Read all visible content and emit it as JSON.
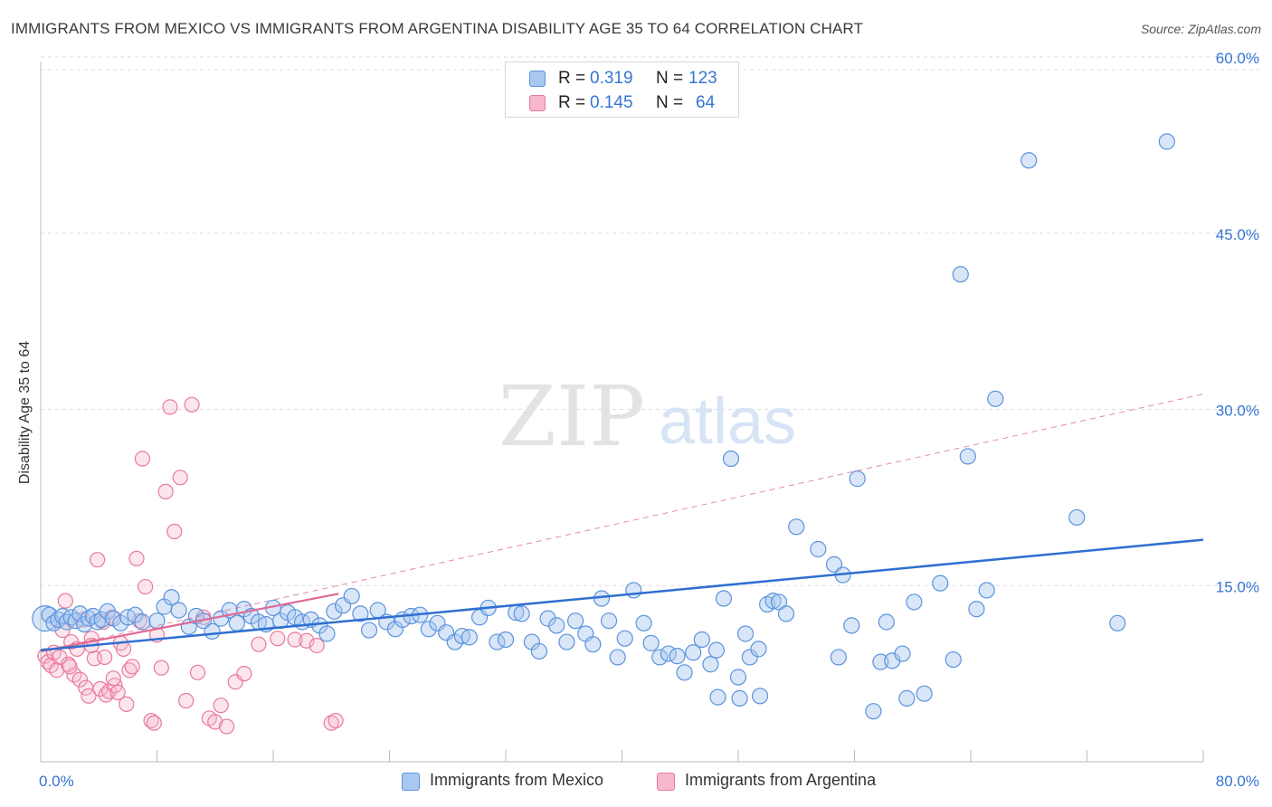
{
  "header": {
    "title": "IMMIGRANTS FROM MEXICO VS IMMIGRANTS FROM ARGENTINA DISABILITY AGE 35 TO 64 CORRELATION CHART",
    "source": "Source: ZipAtlas.com"
  },
  "legend": {
    "mexico": {
      "r_label": "R =",
      "r_value": "0.319",
      "n_label": "N =",
      "n_value": "123"
    },
    "argentina": {
      "r_label": "R =",
      "r_value": "0.145",
      "n_label": "N =",
      "n_value": "64"
    }
  },
  "watermark": {
    "zip": "ZIP",
    "atlas": "atlas"
  },
  "colors": {
    "mexico_fill": "#a9c8f0",
    "mexico_stroke": "#5b93dd",
    "mexico_line": "#2f6fd0",
    "argentina_fill": "#f7b8cb",
    "argentina_stroke": "#e8799c",
    "argentina_line": "#e06a93",
    "value_text": "#3575d4",
    "grid": "#dddddd"
  },
  "chart_data": {
    "type": "scatter",
    "title": "IMMIGRANTS FROM MEXICO VS IMMIGRANTS FROM ARGENTINA DISABILITY AGE 35 TO 64 CORRELATION CHART",
    "xlabel": "",
    "ylabel": "Disability Age 35 to 64",
    "xlim": [
      0,
      80
    ],
    "ylim": [
      0,
      60
    ],
    "x_tick_labels": [
      "0.0%",
      "80.0%"
    ],
    "y_ticks": [
      15,
      30,
      45,
      60
    ],
    "y_tick_labels": [
      "15.0%",
      "30.0%",
      "45.0%",
      "60.0%"
    ],
    "grid": true,
    "legend_position": "top-center",
    "series": [
      {
        "name": "Immigrants from Mexico",
        "r": 0.319,
        "n": 123,
        "trend": {
          "x": [
            0,
            80
          ],
          "y": [
            9.5,
            18.9
          ]
        },
        "points": [
          [
            0.3,
            12.2
          ],
          [
            0.6,
            12.5
          ],
          [
            0.9,
            11.8
          ],
          [
            1.2,
            12.1
          ],
          [
            1.5,
            12.4
          ],
          [
            1.8,
            11.9
          ],
          [
            2.1,
            12.3
          ],
          [
            2.4,
            12.0
          ],
          [
            2.7,
            12.6
          ],
          [
            3.0,
            11.7
          ],
          [
            3.3,
            12.2
          ],
          [
            3.6,
            12.4
          ],
          [
            3.9,
            11.9
          ],
          [
            4.2,
            12.1
          ],
          [
            4.6,
            12.8
          ],
          [
            5.0,
            12.2
          ],
          [
            5.5,
            11.8
          ],
          [
            6.0,
            12.3
          ],
          [
            6.5,
            12.5
          ],
          [
            7.0,
            11.9
          ],
          [
            8.0,
            12.0
          ],
          [
            8.5,
            13.2
          ],
          [
            9.0,
            14.0
          ],
          [
            9.5,
            12.9
          ],
          [
            10.2,
            11.5
          ],
          [
            10.7,
            12.4
          ],
          [
            11.2,
            12.0
          ],
          [
            11.8,
            11.1
          ],
          [
            12.4,
            12.2
          ],
          [
            13.0,
            12.9
          ],
          [
            13.5,
            11.8
          ],
          [
            14.0,
            13.0
          ],
          [
            14.5,
            12.4
          ],
          [
            15.0,
            11.9
          ],
          [
            15.5,
            11.7
          ],
          [
            16.0,
            13.1
          ],
          [
            16.5,
            12.0
          ],
          [
            17.0,
            12.7
          ],
          [
            17.5,
            12.3
          ],
          [
            18.0,
            11.9
          ],
          [
            18.6,
            12.1
          ],
          [
            19.2,
            11.6
          ],
          [
            19.7,
            10.9
          ],
          [
            20.2,
            12.8
          ],
          [
            20.8,
            13.3
          ],
          [
            21.4,
            14.1
          ],
          [
            22.0,
            12.6
          ],
          [
            22.6,
            11.2
          ],
          [
            23.2,
            12.9
          ],
          [
            23.8,
            11.9
          ],
          [
            24.4,
            11.3
          ],
          [
            24.9,
            12.1
          ],
          [
            25.5,
            12.4
          ],
          [
            26.1,
            12.5
          ],
          [
            26.7,
            11.3
          ],
          [
            27.3,
            11.8
          ],
          [
            27.9,
            11.0
          ],
          [
            28.5,
            10.2
          ],
          [
            29.0,
            10.7
          ],
          [
            29.5,
            10.6
          ],
          [
            30.2,
            12.3
          ],
          [
            30.8,
            13.1
          ],
          [
            31.4,
            10.2
          ],
          [
            32.0,
            10.4
          ],
          [
            32.7,
            12.7
          ],
          [
            33.1,
            12.6
          ],
          [
            33.8,
            10.2
          ],
          [
            34.3,
            9.4
          ],
          [
            34.9,
            12.2
          ],
          [
            35.5,
            11.6
          ],
          [
            36.2,
            10.2
          ],
          [
            36.8,
            12.0
          ],
          [
            37.5,
            10.9
          ],
          [
            38.0,
            10.0
          ],
          [
            38.6,
            13.9
          ],
          [
            39.1,
            12.0
          ],
          [
            39.7,
            8.9
          ],
          [
            40.2,
            10.5
          ],
          [
            40.8,
            14.6
          ],
          [
            41.5,
            11.8
          ],
          [
            42.0,
            10.1
          ],
          [
            42.6,
            8.9
          ],
          [
            43.2,
            9.2
          ],
          [
            43.8,
            9.0
          ],
          [
            44.3,
            7.6
          ],
          [
            44.9,
            9.3
          ],
          [
            45.5,
            10.4
          ],
          [
            46.1,
            8.3
          ],
          [
            46.5,
            9.5
          ],
          [
            47.0,
            13.9
          ],
          [
            47.5,
            25.8
          ],
          [
            48.0,
            7.2
          ],
          [
            48.5,
            10.9
          ],
          [
            48.8,
            8.9
          ],
          [
            49.4,
            9.6
          ],
          [
            50.0,
            13.4
          ],
          [
            50.4,
            13.7
          ],
          [
            50.8,
            13.6
          ],
          [
            51.3,
            12.6
          ],
          [
            52.0,
            20.0
          ],
          [
            53.5,
            18.1
          ],
          [
            54.9,
            8.9
          ],
          [
            54.6,
            16.8
          ],
          [
            55.2,
            15.9
          ],
          [
            55.8,
            11.6
          ],
          [
            56.2,
            24.1
          ],
          [
            57.3,
            4.3
          ],
          [
            57.8,
            8.5
          ],
          [
            58.2,
            11.9
          ],
          [
            58.6,
            8.6
          ],
          [
            59.3,
            9.2
          ],
          [
            59.6,
            5.4
          ],
          [
            60.1,
            13.6
          ],
          [
            60.8,
            5.8
          ],
          [
            61.9,
            15.2
          ],
          [
            62.8,
            8.7
          ],
          [
            63.3,
            41.5
          ],
          [
            63.8,
            26.0
          ],
          [
            64.4,
            13.0
          ],
          [
            65.1,
            14.6
          ],
          [
            65.7,
            30.9
          ],
          [
            68.0,
            51.2
          ],
          [
            71.3,
            20.8
          ],
          [
            74.1,
            11.8
          ],
          [
            77.5,
            52.8
          ],
          [
            46.6,
            5.5
          ],
          [
            48.1,
            5.4
          ],
          [
            49.5,
            5.6
          ]
        ]
      },
      {
        "name": "Immigrants from Argentina",
        "r": 0.145,
        "n": 64,
        "trend": {
          "x": [
            0,
            20.5
          ],
          "y": [
            9.4,
            14.3
          ]
        },
        "trend_extended": {
          "x": [
            0,
            80
          ],
          "y": [
            9.4,
            31.3
          ]
        },
        "points": [
          [
            0.3,
            9.0
          ],
          [
            0.5,
            8.5
          ],
          [
            0.7,
            8.2
          ],
          [
            0.9,
            9.3
          ],
          [
            1.1,
            7.8
          ],
          [
            1.3,
            8.9
          ],
          [
            1.5,
            11.2
          ],
          [
            1.7,
            13.7
          ],
          [
            1.9,
            8.3
          ],
          [
            2.1,
            10.2
          ],
          [
            2.3,
            7.4
          ],
          [
            2.5,
            9.6
          ],
          [
            2.7,
            7.0
          ],
          [
            2.9,
            12.1
          ],
          [
            3.1,
            6.3
          ],
          [
            3.3,
            5.6
          ],
          [
            3.5,
            10.5
          ],
          [
            3.7,
            8.8
          ],
          [
            3.9,
            17.2
          ],
          [
            4.1,
            6.2
          ],
          [
            4.3,
            11.9
          ],
          [
            4.5,
            5.7
          ],
          [
            4.7,
            6.0
          ],
          [
            4.9,
            12.3
          ],
          [
            5.1,
            6.5
          ],
          [
            5.3,
            5.9
          ],
          [
            5.5,
            10.1
          ],
          [
            5.7,
            9.6
          ],
          [
            5.9,
            4.9
          ],
          [
            6.1,
            7.8
          ],
          [
            6.3,
            8.1
          ],
          [
            6.6,
            17.3
          ],
          [
            6.8,
            12.0
          ],
          [
            7.0,
            25.8
          ],
          [
            7.2,
            14.9
          ],
          [
            7.6,
            3.5
          ],
          [
            7.8,
            3.3
          ],
          [
            8.0,
            10.8
          ],
          [
            8.3,
            8.0
          ],
          [
            8.6,
            23.0
          ],
          [
            8.9,
            30.2
          ],
          [
            9.2,
            19.6
          ],
          [
            9.6,
            24.2
          ],
          [
            10.0,
            5.2
          ],
          [
            10.4,
            30.4
          ],
          [
            10.8,
            7.6
          ],
          [
            11.2,
            12.3
          ],
          [
            11.6,
            3.7
          ],
          [
            12.0,
            3.4
          ],
          [
            12.4,
            4.8
          ],
          [
            12.8,
            3.0
          ],
          [
            13.4,
            6.8
          ],
          [
            14.0,
            7.5
          ],
          [
            15.0,
            10.0
          ],
          [
            16.3,
            10.5
          ],
          [
            17.5,
            10.4
          ],
          [
            18.3,
            10.3
          ],
          [
            19.0,
            9.9
          ],
          [
            20.0,
            3.3
          ],
          [
            20.3,
            3.5
          ],
          [
            2.0,
            8.1
          ],
          [
            3.5,
            9.9
          ],
          [
            4.4,
            8.9
          ],
          [
            5.0,
            7.1
          ]
        ]
      }
    ]
  },
  "bottom_legend": {
    "mexico": "Immigrants from Mexico",
    "argentina": "Immigrants from Argentina"
  }
}
